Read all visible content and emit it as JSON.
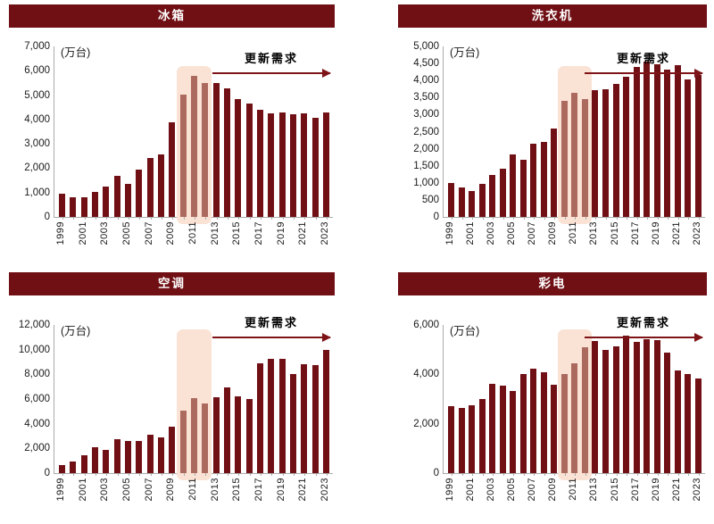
{
  "page": {
    "background": "#FFFFFF"
  },
  "colors": {
    "title_bg": "#701015",
    "title_text": "#FFFFFF",
    "bar_dark": "#701015",
    "bar_light": "#AC6A5E",
    "highlight_bg": "#FAE2D5",
    "arrow": "#7E1418",
    "axis": "#ABABAB",
    "label_text": "#1A1A1A"
  },
  "chart_data": [
    {
      "type": "bar",
      "title": "冰箱",
      "unit": "(万台)",
      "annotation": "更新需求",
      "xlabel": "",
      "ylabel": "万台",
      "ylim": [
        0,
        7000
      ],
      "ytick_step": 1000,
      "grid": false,
      "legend": null,
      "xtick_label_every": 2,
      "highlight_region": {
        "from_year": 2010,
        "to_year": 2012
      },
      "years": [
        1999,
        2000,
        2001,
        2002,
        2003,
        2004,
        2005,
        2006,
        2007,
        2008,
        2009,
        2010,
        2011,
        2012,
        2013,
        2014,
        2015,
        2016,
        2017,
        2018,
        2019,
        2020,
        2021,
        2022,
        2023
      ],
      "values": [
        950,
        820,
        820,
        1010,
        1250,
        1680,
        1360,
        1950,
        2410,
        2570,
        3880,
        5020,
        5790,
        5510,
        5500,
        5270,
        4840,
        4660,
        4390,
        4260,
        4280,
        4230,
        4240,
        4060,
        4280
      ]
    },
    {
      "type": "bar",
      "title": "洗衣机",
      "unit": "(万台)",
      "annotation": "更新需求",
      "xlabel": "",
      "ylabel": "万台",
      "ylim": [
        0,
        5000
      ],
      "ytick_step": 500,
      "grid": false,
      "legend": null,
      "xtick_label_every": 2,
      "highlight_region": {
        "from_year": 2010,
        "to_year": 2012
      },
      "years": [
        1999,
        2000,
        2001,
        2002,
        2003,
        2004,
        2005,
        2006,
        2007,
        2008,
        2009,
        2010,
        2011,
        2012,
        2013,
        2014,
        2015,
        2016,
        2017,
        2018,
        2019,
        2020,
        2021,
        2022,
        2023
      ],
      "values": [
        990,
        860,
        750,
        970,
        1220,
        1410,
        1830,
        1680,
        2140,
        2190,
        2590,
        3400,
        3630,
        3450,
        3710,
        3740,
        3910,
        4120,
        4410,
        4550,
        4480,
        4310,
        4460,
        4040,
        4150
      ]
    },
    {
      "type": "bar",
      "title": "空调",
      "unit": "(万台)",
      "annotation": "更新需求",
      "xlabel": "",
      "ylabel": "万台",
      "ylim": [
        0,
        12000
      ],
      "ytick_step": 2000,
      "grid": false,
      "legend": null,
      "xtick_label_every": 2,
      "highlight_region": {
        "from_year": 2010,
        "to_year": 2012
      },
      "years": [
        1999,
        2000,
        2001,
        2002,
        2003,
        2004,
        2005,
        2006,
        2007,
        2008,
        2009,
        2010,
        2011,
        2012,
        2013,
        2014,
        2015,
        2016,
        2017,
        2018,
        2019,
        2020,
        2021,
        2022,
        2023
      ],
      "values": [
        650,
        930,
        1420,
        2120,
        1910,
        2770,
        2590,
        2590,
        3120,
        2910,
        3730,
        5080,
        6060,
        5660,
        6170,
        6970,
        6220,
        5990,
        8900,
        9270,
        9270,
        8020,
        8830,
        8740,
        9970
      ]
    },
    {
      "type": "bar",
      "title": "彩电",
      "unit": "(万台)",
      "annotation": "更新需求",
      "xlabel": "",
      "ylabel": "万台",
      "ylim": [
        0,
        6000
      ],
      "ytick_step": 2000,
      "grid": false,
      "legend": null,
      "xtick_label_every": 2,
      "highlight_region": {
        "from_year": 2010,
        "to_year": 2012
      },
      "years": [
        1999,
        2000,
        2001,
        2002,
        2003,
        2004,
        2005,
        2006,
        2007,
        2008,
        2009,
        2010,
        2011,
        2012,
        2013,
        2014,
        2015,
        2016,
        2017,
        2018,
        2019,
        2020,
        2021,
        2022,
        2023
      ],
      "values": [
        2710,
        2650,
        2750,
        3010,
        3610,
        3540,
        3340,
        4010,
        4240,
        4070,
        3580,
        4020,
        4450,
        5100,
        5350,
        4990,
        5130,
        5570,
        5330,
        5430,
        5390,
        4890,
        4150,
        4020,
        3830
      ]
    }
  ]
}
